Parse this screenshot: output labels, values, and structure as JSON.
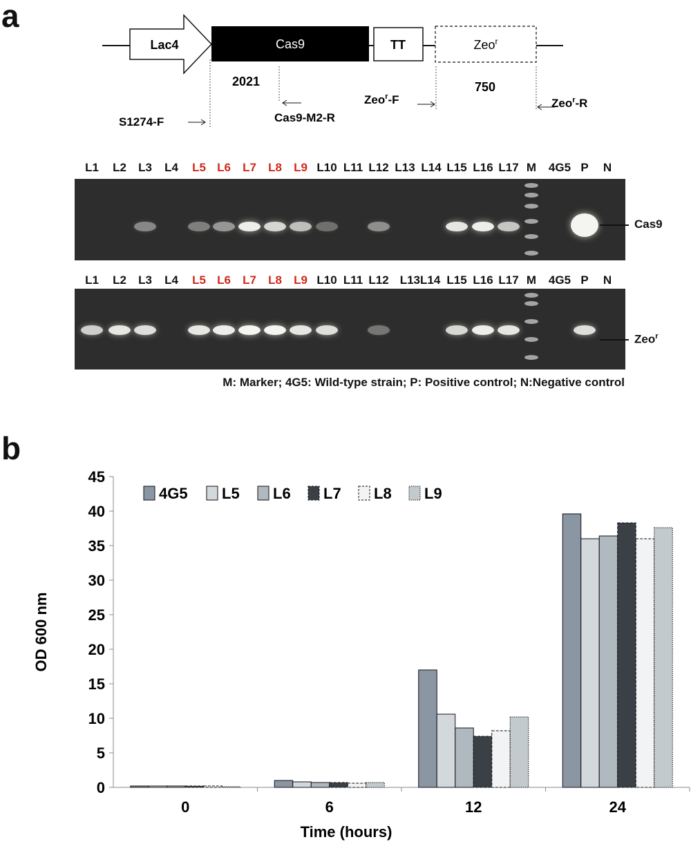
{
  "panel_a": {
    "letter": "a",
    "construct": {
      "lac4": "Lac4",
      "cas9": "Cas9",
      "tt": "TT",
      "zeo_base": "Zeo",
      "zeo_sup": "r",
      "size_cas9": "2021",
      "size_zeo": "750",
      "primer_s1274f": "S1274-F",
      "primer_cas9m2r": "Cas9-M2-R",
      "primer_zeof_base": "Zeo",
      "primer_zeof_sup": "r",
      "primer_zeof_suffix": "-F",
      "primer_zeor_base": "Zeo",
      "primer_zeor_sup": "r",
      "primer_zeor_suffix": "-R"
    },
    "gel_top": {
      "lanes": [
        "L1",
        "L2",
        "L3",
        "L4",
        "L5",
        "L6",
        "L7",
        "L8",
        "L9",
        "L10",
        "L11",
        "L12",
        "L13",
        "L14",
        "L15",
        "L16",
        "L17",
        "M",
        "4G5",
        "P",
        "N"
      ],
      "highlight_lanes": [
        "L5",
        "L6",
        "L7",
        "L8",
        "L9"
      ],
      "band_intensity": [
        0,
        0,
        0.25,
        0,
        0.2,
        0.35,
        0.9,
        0.75,
        0.6,
        0.1,
        0,
        0.3,
        0,
        0,
        0.85,
        0.9,
        0.65,
        0,
        0,
        1.0,
        0
      ],
      "band_label": "Cas9",
      "highlight_color": "#d0281a"
    },
    "gel_bottom": {
      "lanes": [
        "L1",
        "L2",
        "L3",
        "L4",
        "L5",
        "L6",
        "L7",
        "L8",
        "L9",
        "L10",
        "L11",
        "L12",
        "L13L14",
        "L15",
        "L16",
        "L17",
        "M",
        "4G5",
        "P",
        "N"
      ],
      "band_intensity": [
        0.7,
        0.85,
        0.8,
        0,
        0.85,
        0.9,
        1.0,
        0.95,
        0.85,
        0.8,
        0,
        0.15,
        0,
        0.75,
        0.9,
        0.85,
        0,
        0,
        0.8,
        0
      ],
      "band_label_base": "Zeo",
      "band_label_sup": "r"
    },
    "legend": "M: Marker; 4G5: Wild-type strain; P: Positive control; N:Negative control"
  },
  "panel_b": {
    "letter": "b"
  },
  "chart_data": {
    "type": "bar",
    "title": "",
    "xlabel": "Time (hours)",
    "ylabel": "OD 600 nm",
    "categories": [
      "0",
      "6",
      "12",
      "24"
    ],
    "ylim": [
      0,
      45
    ],
    "yticks": [
      0,
      5,
      10,
      15,
      20,
      25,
      30,
      35,
      40,
      45
    ],
    "grid": false,
    "legend_position": "top-left",
    "series": [
      {
        "name": "4G5",
        "values": [
          0.2,
          1.0,
          17.0,
          39.6
        ],
        "color": "#8a96a3",
        "dash": "solid"
      },
      {
        "name": "L5",
        "values": [
          0.2,
          0.8,
          10.6,
          36.0
        ],
        "color": "#d3d8dd",
        "dash": "solid"
      },
      {
        "name": "L6",
        "values": [
          0.2,
          0.7,
          8.6,
          36.4
        ],
        "color": "#b0b8c0",
        "dash": "solid"
      },
      {
        "name": "L7",
        "values": [
          0.2,
          0.7,
          7.4,
          38.3
        ],
        "color": "#3b4047",
        "dash": "dashed"
      },
      {
        "name": "L8",
        "values": [
          0.2,
          0.6,
          8.2,
          36.0
        ],
        "color": "#f1f3f5",
        "dash": "dashed"
      },
      {
        "name": "L9",
        "values": [
          0.1,
          0.7,
          10.2,
          37.6
        ],
        "color": "#c3cace",
        "dash": "dotted"
      }
    ]
  }
}
